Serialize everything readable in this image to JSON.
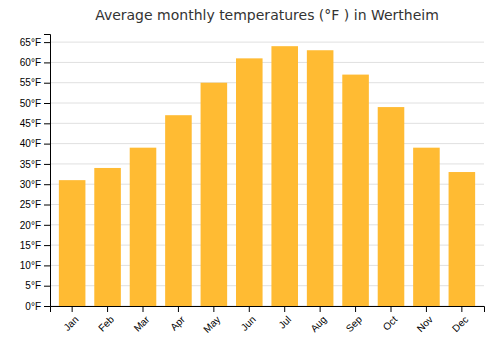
{
  "chart_data": {
    "type": "bar",
    "title": "Average monthly temperatures (°F ) in Wertheim",
    "categories": [
      "Jan",
      "Feb",
      "Mar",
      "Apr",
      "May",
      "Jun",
      "Jul",
      "Aug",
      "Sep",
      "Oct",
      "Nov",
      "Dec"
    ],
    "values": [
      31,
      34,
      39,
      47,
      55,
      61,
      64,
      63,
      57,
      49,
      39,
      33
    ],
    "color": "#FFBB33",
    "ylim": [
      0,
      67
    ],
    "yticks": [
      {
        "value": 0,
        "label": "0°F"
      },
      {
        "value": 5,
        "label": "5°F"
      },
      {
        "value": 10,
        "label": "10°F"
      },
      {
        "value": 15,
        "label": "15°F"
      },
      {
        "value": 20,
        "label": "20°F"
      },
      {
        "value": 25,
        "label": "25°F"
      },
      {
        "value": 30,
        "label": "30°F"
      },
      {
        "value": 35,
        "label": "35°F"
      },
      {
        "value": 40,
        "label": "40°F"
      },
      {
        "value": 45,
        "label": "45°F"
      },
      {
        "value": 50,
        "label": "50°F"
      },
      {
        "value": 55,
        "label": "55°F"
      },
      {
        "value": 60,
        "label": "60°F"
      },
      {
        "value": 65,
        "label": "65°F"
      }
    ],
    "grid": true
  }
}
